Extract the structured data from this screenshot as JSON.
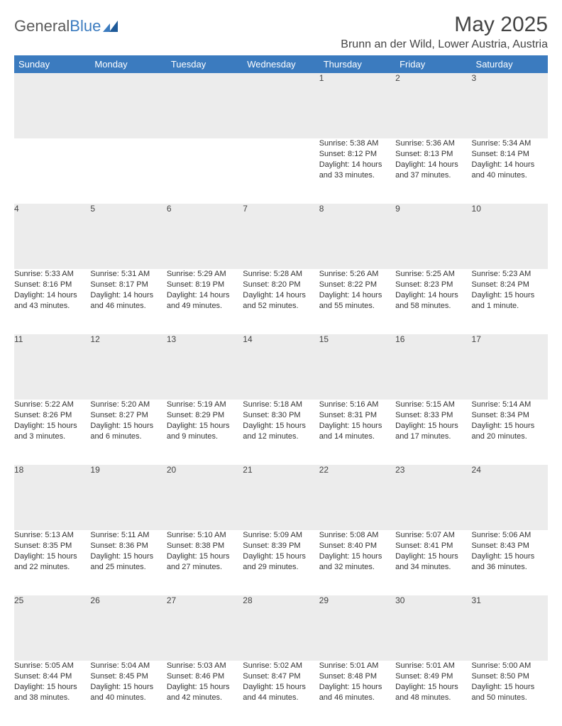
{
  "logo": {
    "text1": "General",
    "text2": "Blue"
  },
  "title": "May 2025",
  "location": "Brunn an der Wild, Lower Austria, Austria",
  "colors": {
    "header_bg": "#3b7bbf",
    "header_text": "#ffffff",
    "daynum_bg": "#ececec",
    "row_divider": "#3b7bbf",
    "text": "#333333",
    "page_bg": "#ffffff"
  },
  "day_headers": [
    "Sunday",
    "Monday",
    "Tuesday",
    "Wednesday",
    "Thursday",
    "Friday",
    "Saturday"
  ],
  "weeks": [
    [
      null,
      null,
      null,
      null,
      {
        "n": "1",
        "sunrise": "5:38 AM",
        "sunset": "8:12 PM",
        "daylight": "14 hours and 33 minutes."
      },
      {
        "n": "2",
        "sunrise": "5:36 AM",
        "sunset": "8:13 PM",
        "daylight": "14 hours and 37 minutes."
      },
      {
        "n": "3",
        "sunrise": "5:34 AM",
        "sunset": "8:14 PM",
        "daylight": "14 hours and 40 minutes."
      }
    ],
    [
      {
        "n": "4",
        "sunrise": "5:33 AM",
        "sunset": "8:16 PM",
        "daylight": "14 hours and 43 minutes."
      },
      {
        "n": "5",
        "sunrise": "5:31 AM",
        "sunset": "8:17 PM",
        "daylight": "14 hours and 46 minutes."
      },
      {
        "n": "6",
        "sunrise": "5:29 AM",
        "sunset": "8:19 PM",
        "daylight": "14 hours and 49 minutes."
      },
      {
        "n": "7",
        "sunrise": "5:28 AM",
        "sunset": "8:20 PM",
        "daylight": "14 hours and 52 minutes."
      },
      {
        "n": "8",
        "sunrise": "5:26 AM",
        "sunset": "8:22 PM",
        "daylight": "14 hours and 55 minutes."
      },
      {
        "n": "9",
        "sunrise": "5:25 AM",
        "sunset": "8:23 PM",
        "daylight": "14 hours and 58 minutes."
      },
      {
        "n": "10",
        "sunrise": "5:23 AM",
        "sunset": "8:24 PM",
        "daylight": "15 hours and 1 minute."
      }
    ],
    [
      {
        "n": "11",
        "sunrise": "5:22 AM",
        "sunset": "8:26 PM",
        "daylight": "15 hours and 3 minutes."
      },
      {
        "n": "12",
        "sunrise": "5:20 AM",
        "sunset": "8:27 PM",
        "daylight": "15 hours and 6 minutes."
      },
      {
        "n": "13",
        "sunrise": "5:19 AM",
        "sunset": "8:29 PM",
        "daylight": "15 hours and 9 minutes."
      },
      {
        "n": "14",
        "sunrise": "5:18 AM",
        "sunset": "8:30 PM",
        "daylight": "15 hours and 12 minutes."
      },
      {
        "n": "15",
        "sunrise": "5:16 AM",
        "sunset": "8:31 PM",
        "daylight": "15 hours and 14 minutes."
      },
      {
        "n": "16",
        "sunrise": "5:15 AM",
        "sunset": "8:33 PM",
        "daylight": "15 hours and 17 minutes."
      },
      {
        "n": "17",
        "sunrise": "5:14 AM",
        "sunset": "8:34 PM",
        "daylight": "15 hours and 20 minutes."
      }
    ],
    [
      {
        "n": "18",
        "sunrise": "5:13 AM",
        "sunset": "8:35 PM",
        "daylight": "15 hours and 22 minutes."
      },
      {
        "n": "19",
        "sunrise": "5:11 AM",
        "sunset": "8:36 PM",
        "daylight": "15 hours and 25 minutes."
      },
      {
        "n": "20",
        "sunrise": "5:10 AM",
        "sunset": "8:38 PM",
        "daylight": "15 hours and 27 minutes."
      },
      {
        "n": "21",
        "sunrise": "5:09 AM",
        "sunset": "8:39 PM",
        "daylight": "15 hours and 29 minutes."
      },
      {
        "n": "22",
        "sunrise": "5:08 AM",
        "sunset": "8:40 PM",
        "daylight": "15 hours and 32 minutes."
      },
      {
        "n": "23",
        "sunrise": "5:07 AM",
        "sunset": "8:41 PM",
        "daylight": "15 hours and 34 minutes."
      },
      {
        "n": "24",
        "sunrise": "5:06 AM",
        "sunset": "8:43 PM",
        "daylight": "15 hours and 36 minutes."
      }
    ],
    [
      {
        "n": "25",
        "sunrise": "5:05 AM",
        "sunset": "8:44 PM",
        "daylight": "15 hours and 38 minutes."
      },
      {
        "n": "26",
        "sunrise": "5:04 AM",
        "sunset": "8:45 PM",
        "daylight": "15 hours and 40 minutes."
      },
      {
        "n": "27",
        "sunrise": "5:03 AM",
        "sunset": "8:46 PM",
        "daylight": "15 hours and 42 minutes."
      },
      {
        "n": "28",
        "sunrise": "5:02 AM",
        "sunset": "8:47 PM",
        "daylight": "15 hours and 44 minutes."
      },
      {
        "n": "29",
        "sunrise": "5:01 AM",
        "sunset": "8:48 PM",
        "daylight": "15 hours and 46 minutes."
      },
      {
        "n": "30",
        "sunrise": "5:01 AM",
        "sunset": "8:49 PM",
        "daylight": "15 hours and 48 minutes."
      },
      {
        "n": "31",
        "sunrise": "5:00 AM",
        "sunset": "8:50 PM",
        "daylight": "15 hours and 50 minutes."
      }
    ]
  ],
  "labels": {
    "sunrise": "Sunrise: ",
    "sunset": "Sunset: ",
    "daylight": "Daylight: "
  }
}
